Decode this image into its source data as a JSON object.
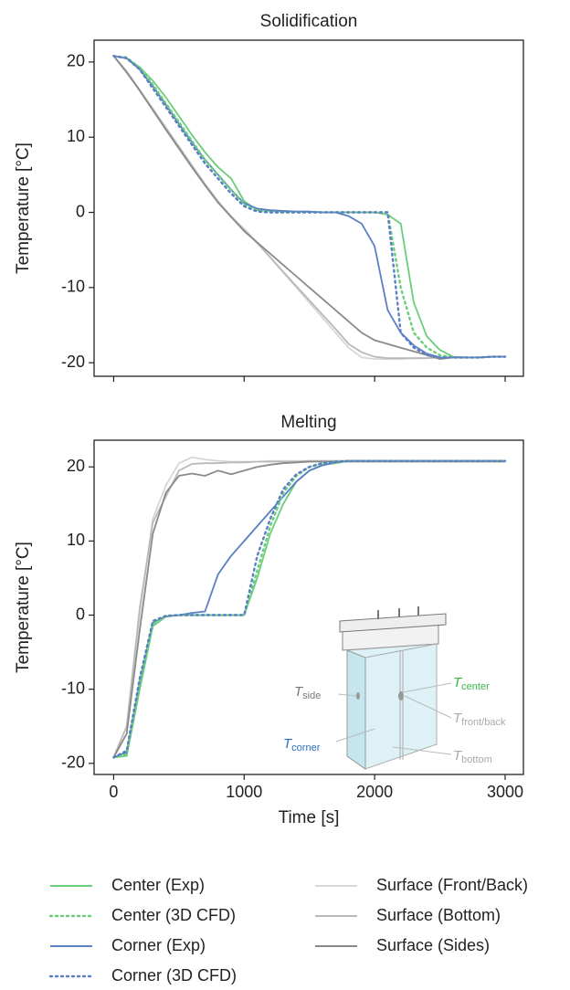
{
  "chart_data": [
    {
      "type": "line",
      "title": "Solidification",
      "ylabel": "Temperature [°C]",
      "x": [
        0,
        100,
        200,
        300,
        400,
        500,
        600,
        700,
        800,
        900,
        1000,
        1100,
        1200,
        1300,
        1400,
        1500,
        1600,
        1700,
        1800,
        1900,
        2000,
        2100,
        2200,
        2300,
        2400,
        2500,
        2600,
        2700,
        2800,
        2900,
        3000
      ],
      "xlim": [
        -150,
        3140
      ],
      "xticks": [
        0,
        1000,
        2000,
        3000
      ],
      "show_xtick_labels": false,
      "ylim": [
        -21.8,
        22.9
      ],
      "yticks": [
        -20,
        -10,
        0,
        10,
        20
      ],
      "series": [
        {
          "name": "Center (Exp)",
          "color": "#6acd7a",
          "style": "solid",
          "values": [
            20.8,
            20.5,
            19.3,
            17.5,
            15.3,
            12.8,
            10.3,
            8,
            6,
            4.5,
            1.5,
            0.3,
            0.2,
            0.1,
            0.1,
            0.1,
            0,
            0,
            0,
            0,
            0,
            -0.3,
            -1.5,
            -12,
            -16.5,
            -18.3,
            -19.2,
            -19.3,
            -19.3,
            -19.2,
            -19.2
          ]
        },
        {
          "name": "Center (3D CFD)",
          "color": "#6acd7a",
          "style": "dotted",
          "values": [
            20.8,
            20.6,
            19.2,
            17,
            14.5,
            12,
            9.5,
            7,
            5,
            3,
            1,
            0.2,
            0,
            0,
            0,
            0,
            0,
            0,
            0,
            0,
            0,
            0,
            -10,
            -16,
            -18,
            -19,
            -19.3,
            -19.3,
            -19.3,
            -19.2,
            -19.2
          ]
        },
        {
          "name": "Corner (Exp)",
          "color": "#5b7fc4",
          "style": "solid",
          "values": [
            20.8,
            20.5,
            19,
            16.8,
            14.3,
            11.8,
            9.3,
            7,
            5,
            3,
            1.2,
            0.5,
            0.3,
            0.2,
            0.1,
            0.1,
            0,
            0,
            -0.5,
            -1.5,
            -4.5,
            -13,
            -16,
            -17.7,
            -18.8,
            -19.3,
            -19.3,
            -19.3,
            -19.3,
            -19.2,
            -19.2
          ]
        },
        {
          "name": "Corner (3D CFD)",
          "color": "#5b7fc4",
          "style": "dotted",
          "values": [
            20.8,
            20.5,
            19,
            16.5,
            14,
            11.5,
            9,
            6.5,
            4.5,
            2.5,
            0.8,
            0.1,
            0,
            0,
            0,
            0,
            0,
            0,
            0,
            0,
            0,
            0,
            -16,
            -18,
            -19,
            -19.3,
            -19.3,
            -19.3,
            -19.3,
            -19.2,
            -19.2
          ]
        },
        {
          "name": "Surface (Front/Back)",
          "color": "#d6d6d6",
          "style": "solid",
          "values": [
            20.8,
            18.8,
            16.3,
            13.8,
            11.3,
            8.8,
            6.3,
            3.8,
            1.5,
            -0.5,
            -2.2,
            -4,
            -6,
            -8,
            -10,
            -12,
            -14,
            -16,
            -18,
            -19.3,
            -19.5,
            -19.5,
            -19.5,
            -19.4,
            -19.4,
            -19.3,
            -19.3,
            -19.3,
            -19.3,
            -19.2,
            -19.2
          ]
        },
        {
          "name": "Surface (Bottom)",
          "color": "#b9b9b9",
          "style": "solid",
          "values": [
            20.8,
            18.7,
            16.2,
            13.7,
            11.2,
            8.7,
            6.2,
            3.7,
            1.4,
            -0.6,
            -2.3,
            -4.1,
            -6,
            -7.9,
            -9.8,
            -11.7,
            -13.6,
            -15.5,
            -17.5,
            -18.6,
            -19.2,
            -19.4,
            -19.4,
            -19.4,
            -19.4,
            -19.3,
            -19.3,
            -19.3,
            -19.3,
            -19.2,
            -19.2
          ]
        },
        {
          "name": "Surface (Sides)",
          "color": "#8a8a8a",
          "style": "solid",
          "values": [
            20.8,
            18.6,
            16.2,
            13.6,
            11,
            8.5,
            6,
            3.6,
            1.3,
            -0.6,
            -2.5,
            -4,
            -5.5,
            -7,
            -8.5,
            -10,
            -11.5,
            -13,
            -14.5,
            -16,
            -17,
            -17.5,
            -18,
            -18.5,
            -19,
            -19.5,
            -19.3,
            -19.3,
            -19.3,
            -19.2,
            -19.2
          ]
        }
      ]
    },
    {
      "type": "line",
      "title": "Melting",
      "ylabel": "Temperature [°C]",
      "xlabel": "Time [s]",
      "x": [
        0,
        100,
        200,
        300,
        400,
        500,
        600,
        700,
        800,
        900,
        1000,
        1100,
        1200,
        1300,
        1400,
        1500,
        1600,
        1700,
        1800,
        1900,
        2000,
        2100,
        2200,
        2300,
        2400,
        2500,
        2600,
        2700,
        2800,
        2900,
        3000
      ],
      "xlim": [
        -150,
        3140
      ],
      "xticks": [
        0,
        1000,
        2000,
        3000
      ],
      "show_xtick_labels": true,
      "ylim": [
        -21.5,
        23.6
      ],
      "yticks": [
        -20,
        -10,
        0,
        10,
        20
      ],
      "series": [
        {
          "name": "Center (Exp)",
          "color": "#6acd7a",
          "style": "solid",
          "values": [
            -19.2,
            -19,
            -10,
            -1.5,
            -0.2,
            0,
            0,
            0,
            0,
            0,
            0,
            5,
            11,
            15,
            18,
            19.5,
            20.3,
            20.5,
            20.8,
            20.8,
            20.8,
            20.8,
            20.8,
            20.8,
            20.8,
            20.8,
            20.8,
            20.8,
            20.8,
            20.8,
            20.8
          ]
        },
        {
          "name": "Center (3D CFD)",
          "color": "#6acd7a",
          "style": "dotted",
          "values": [
            -19.2,
            -18.8,
            -9.5,
            -1.2,
            -0.1,
            0,
            0,
            0,
            0,
            0,
            0,
            6,
            12,
            16.5,
            18.8,
            20,
            20.5,
            20.7,
            20.8,
            20.8,
            20.8,
            20.8,
            20.8,
            20.8,
            20.8,
            20.8,
            20.8,
            20.8,
            20.8,
            20.8,
            20.8
          ]
        },
        {
          "name": "Corner (Exp)",
          "color": "#5b7fc4",
          "style": "solid",
          "values": [
            -19.2,
            -18.5,
            -9,
            -1,
            -0.2,
            0,
            0.3,
            0.5,
            5.5,
            8,
            10,
            12,
            14,
            16,
            18,
            19.5,
            20.2,
            20.6,
            20.8,
            20.8,
            20.8,
            20.8,
            20.8,
            20.8,
            20.8,
            20.8,
            20.8,
            20.8,
            20.8,
            20.8,
            20.8
          ]
        },
        {
          "name": "Corner (3D CFD)",
          "color": "#5b7fc4",
          "style": "dotted",
          "values": [
            -19.2,
            -18.3,
            -8.5,
            -0.8,
            -0.1,
            0,
            0,
            0,
            0,
            0,
            0,
            8,
            13,
            17,
            19,
            20,
            20.5,
            20.7,
            20.8,
            20.8,
            20.8,
            20.8,
            20.8,
            20.8,
            20.8,
            20.8,
            20.8,
            20.8,
            20.8,
            20.8,
            20.8
          ]
        },
        {
          "name": "Surface (Front/Back)",
          "color": "#d6d6d6",
          "style": "solid",
          "values": [
            -19.2,
            -15,
            0,
            13,
            17.5,
            20.5,
            21.3,
            21,
            20.8,
            20.7,
            20.7,
            20.7,
            20.8,
            20.8,
            20.8,
            20.8,
            20.8,
            20.8,
            20.8,
            20.8,
            20.8,
            20.8,
            20.8,
            20.8,
            20.8,
            20.8,
            20.8,
            20.8,
            20.8,
            20.8,
            20.8
          ]
        },
        {
          "name": "Surface (Bottom)",
          "color": "#b9b9b9",
          "style": "solid",
          "values": [
            -19.2,
            -15,
            1,
            12.5,
            16,
            19.5,
            20.4,
            20.5,
            20.5,
            20.6,
            20.6,
            20.7,
            20.7,
            20.7,
            20.7,
            20.8,
            20.8,
            20.8,
            20.8,
            20.8,
            20.8,
            20.8,
            20.8,
            20.8,
            20.8,
            20.8,
            20.8,
            20.8,
            20.8,
            20.8,
            20.8
          ]
        },
        {
          "name": "Surface (Sides)",
          "color": "#8a8a8a",
          "style": "solid",
          "values": [
            -19.2,
            -16,
            -2,
            11,
            16.5,
            18.8,
            19.1,
            18.8,
            19.5,
            19,
            19.5,
            20,
            20.3,
            20.5,
            20.6,
            20.7,
            20.7,
            20.7,
            20.7,
            20.7,
            20.7,
            20.7,
            20.7,
            20.7,
            20.7,
            20.7,
            20.7,
            20.7,
            20.7,
            20.7,
            20.7
          ]
        }
      ],
      "annotations": [
        {
          "text": "T",
          "sub": "center",
          "color": "#3cb54a"
        },
        {
          "text": "T",
          "sub": "side",
          "color": "#777777"
        },
        {
          "text": "T",
          "sub": "front/back",
          "color": "#aaaaaa"
        },
        {
          "text": "T",
          "sub": "corner",
          "color": "#2a6fc4"
        },
        {
          "text": "T",
          "sub": "bottom",
          "color": "#aaaaaa"
        }
      ]
    }
  ]
}
